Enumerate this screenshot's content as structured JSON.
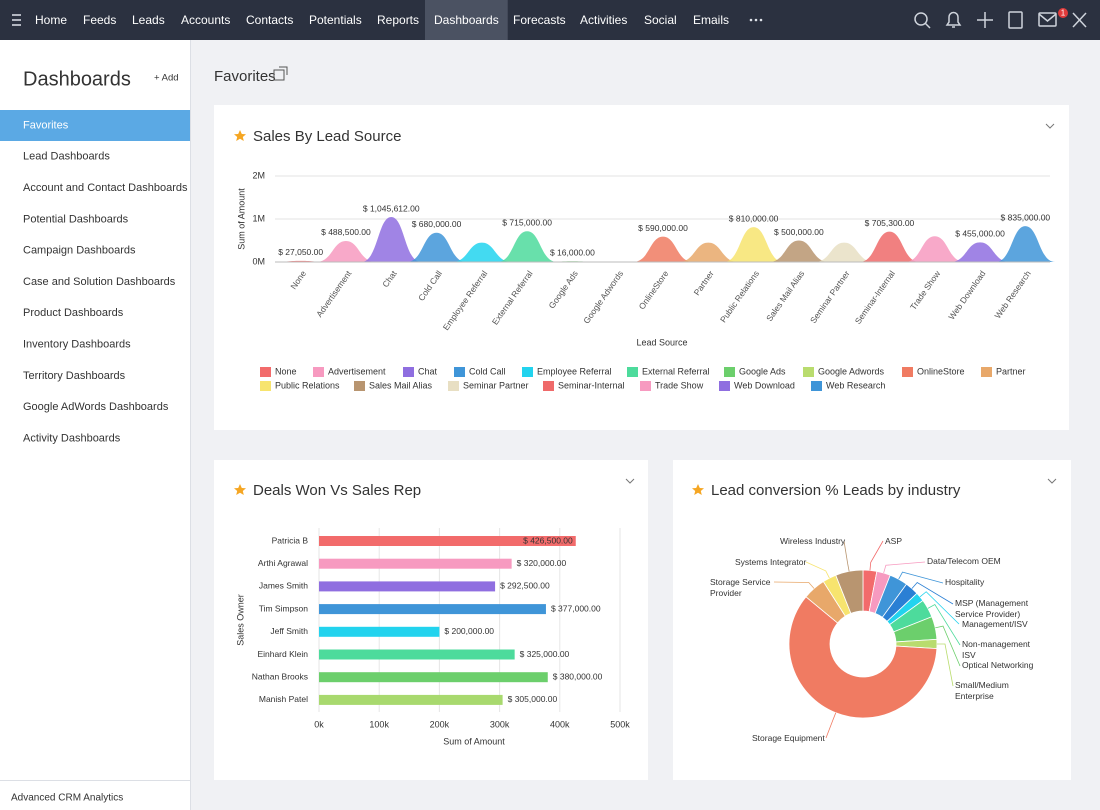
{
  "nav": {
    "items": [
      {
        "label": "Home",
        "active": false
      },
      {
        "label": "Feeds",
        "active": false
      },
      {
        "label": "Leads",
        "active": false
      },
      {
        "label": "Accounts",
        "active": false
      },
      {
        "label": "Contacts",
        "active": false
      },
      {
        "label": "Potentials",
        "active": false
      },
      {
        "label": "Reports",
        "active": false
      },
      {
        "label": "Dashboards",
        "active": true
      },
      {
        "label": "Forecasts",
        "active": false
      },
      {
        "label": "Activities",
        "active": false
      },
      {
        "label": "Social",
        "active": false
      },
      {
        "label": "Emails",
        "active": false
      }
    ],
    "notification_count": 1
  },
  "sidebar": {
    "title": "Dashboards",
    "add_button": "+ Add",
    "items": [
      {
        "label": "Favorites",
        "active": true
      },
      {
        "label": "Lead Dashboards",
        "active": false
      },
      {
        "label": "Account and Contact Dashboards",
        "active": false
      },
      {
        "label": "Potential Dashboards",
        "active": false
      },
      {
        "label": "Campaign Dashboards",
        "active": false
      },
      {
        "label": "Case and Solution Dashboards",
        "active": false
      },
      {
        "label": "Product Dashboards",
        "active": false
      },
      {
        "label": "Inventory Dashboards",
        "active": false
      },
      {
        "label": "Territory Dashboards",
        "active": false
      },
      {
        "label": "Google AdWords Dashboards",
        "active": false
      },
      {
        "label": "Activity Dashboards",
        "active": false
      }
    ],
    "footer": "Advanced CRM Analytics"
  },
  "main": {
    "title": "Favorites"
  },
  "chart_data": [
    {
      "type": "area",
      "title": "Sales By Lead Source",
      "x_label": "Lead Source",
      "y_label": "Sum of Amount",
      "categories": [
        "None",
        "Advertisement",
        "Chat",
        "Cold Call",
        "Employee Referral",
        "External Referral",
        "Google Ads",
        "Google Adwords",
        "OnlineStore",
        "Partner",
        "Public Relations",
        "Sales Mail Alias",
        "Seminar Partner",
        "Seminar-Internal",
        "Trade Show",
        "Web Download",
        "Web Research"
      ],
      "values": [
        27050,
        488500,
        1045612,
        680000,
        450000,
        715000,
        16000,
        0,
        590000,
        450000,
        810000,
        500000,
        450000,
        705300,
        600000,
        455000,
        835000
      ],
      "value_labels": [
        "$ 27,050.00",
        "$ 488,500.00",
        "$ 1,045,612.00",
        "$ 680,000.00",
        null,
        "$ 715,000.00",
        "$ 16,000.00",
        null,
        "$ 590,000.00",
        null,
        "$ 810,000.00",
        "$ 500,000.00",
        null,
        "$ 705,300.00",
        null,
        "$ 455,000.00",
        "$ 835,000.00"
      ],
      "colors": [
        "#f26b6b",
        "#f79ac0",
        "#8f6ee0",
        "#3f95d8",
        "#22d3ee",
        "#4ddb9c",
        "#6ccf6c",
        "#b9dc6e",
        "#f07b62",
        "#e8a86a",
        "#f7e46e",
        "#b89570",
        "#e8dfc3",
        "#ef6a6a",
        "#f79ac0",
        "#8f6ee0",
        "#3f95d8"
      ],
      "ylim": [
        0,
        2000000
      ],
      "yticks": [
        {
          "value": 0,
          "label": "0M"
        },
        {
          "value": 1000000,
          "label": "1M"
        },
        {
          "value": 2000000,
          "label": "2M"
        }
      ],
      "grid": true
    },
    {
      "type": "bar",
      "orientation": "horizontal",
      "title": "Deals Won Vs Sales Rep",
      "x_label": "Sum of Amount",
      "y_label": "Sales Owner",
      "categories": [
        "Patricia B",
        "Arthi Agrawal",
        "James Smith",
        "Tim Simpson",
        "Jeff Smith",
        "Einhard Klein",
        "Nathan Brooks",
        "Manish Patel"
      ],
      "values": [
        426500,
        320000,
        292500,
        377000,
        200000,
        325000,
        380000,
        305000
      ],
      "value_labels": [
        "$ 426,500.00",
        "$ 320,000.00",
        "$ 292,500.00",
        "$ 377,000.00",
        "$ 200,000.00",
        "$ 325,000.00",
        "$ 380,000.00",
        "$ 305,000.00"
      ],
      "colors": [
        "#f26b6b",
        "#f79ac0",
        "#8f6ee0",
        "#3f95d8",
        "#22d3ee",
        "#4ddb9c",
        "#6ccf6c",
        "#a8d96e"
      ],
      "xlim": [
        0,
        500000
      ],
      "xticks": [
        {
          "value": 0,
          "label": "0k"
        },
        {
          "value": 100000,
          "label": "100k"
        },
        {
          "value": 200000,
          "label": "200k"
        },
        {
          "value": 300000,
          "label": "300k"
        },
        {
          "value": 400000,
          "label": "400k"
        },
        {
          "value": 500000,
          "label": "500k"
        }
      ],
      "grid": true
    },
    {
      "type": "pie",
      "donut": true,
      "title": "Lead conversion % Leads by industry",
      "categories": [
        "ASP",
        "Data/Telecom OEM",
        "Hospitality",
        "MSP (Management Service Provider)",
        "Management/ISV",
        "Non-management ISV",
        "Optical Networking",
        "Small/Medium Enterprise",
        "Storage Equipment",
        "Storage Service Provider",
        "Systems Integrator",
        "Wireless Industry"
      ],
      "values": [
        3,
        3,
        4,
        3,
        2,
        4,
        5,
        2,
        60,
        5,
        3,
        6
      ],
      "colors": [
        "#f26b6b",
        "#f79ac0",
        "#3f95d8",
        "#2a7fd4",
        "#22d3ee",
        "#4ddb9c",
        "#6ccf6c",
        "#b9dc6e",
        "#f07b62",
        "#e8a86a",
        "#f7e46e",
        "#b89570"
      ]
    }
  ]
}
